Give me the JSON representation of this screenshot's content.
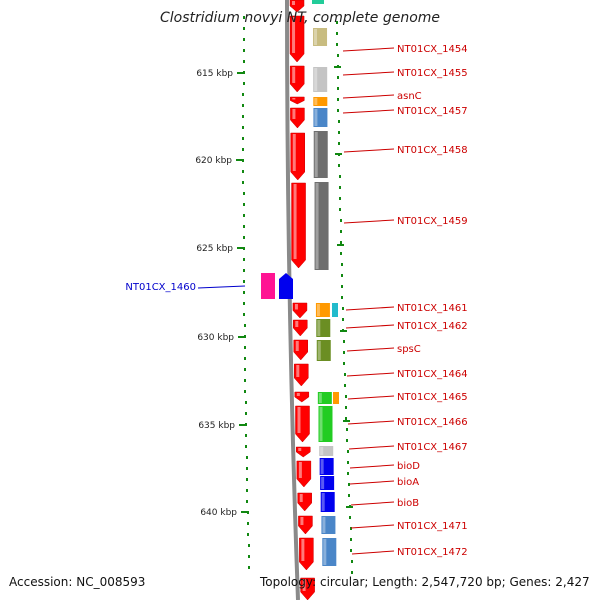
{
  "title": "Clostridium novyi NT, complete genome",
  "footer": {
    "accession": "Accession: NC_008593",
    "info": "Topology: circular; Length: 2,547,720 bp; Genes: 2,427"
  },
  "colors": {
    "backbone": "#8a8a8a",
    "gene_red": "#ff0000",
    "tick_green": "#118811",
    "label_red": "#cc0000",
    "label_blue": "#0000cc"
  },
  "ruler": [
    {
      "label": "615 kbp"
    },
    {
      "label": "620 kbp"
    },
    {
      "label": "625 kbp"
    },
    {
      "label": "630 kbp"
    },
    {
      "label": "635 kbp"
    },
    {
      "label": "640 kbp"
    }
  ],
  "genes_right": [
    {
      "label": "NT01CX_1454",
      "cog_color": "#c8bc80"
    },
    {
      "label": "NT01CX_1455",
      "cog_color": "#c4c4c4"
    },
    {
      "label": "asnC",
      "cog_color": "#ff9900"
    },
    {
      "label": "NT01CX_1457",
      "cog_color": "#4a86c8"
    },
    {
      "label": "NT01CX_1458",
      "cog_color": "#6e6e6e"
    },
    {
      "label": "NT01CX_1459",
      "cog_color": "#6e6e6e"
    },
    {
      "label": "NT01CX_1461",
      "cog_color": "#ff9900"
    },
    {
      "label": "NT01CX_1462",
      "cog_color": "#6b8e23"
    },
    {
      "label": "spsC",
      "cog_color": "#6b8e23"
    },
    {
      "label": "NT01CX_1464",
      "cog_color": ""
    },
    {
      "label": "NT01CX_1465",
      "cog_color": "#22cc22"
    },
    {
      "label": "NT01CX_1466",
      "cog_color": "#22cc22"
    },
    {
      "label": "NT01CX_1467",
      "cog_color": "#c4c4c4"
    },
    {
      "label": "bioD",
      "cog_color": "#0000ee"
    },
    {
      "label": "bioA",
      "cog_color": "#0000ee"
    },
    {
      "label": "bioB",
      "cog_color": "#0000ee"
    },
    {
      "label": "NT01CX_1471",
      "cog_color": "#4a86c8"
    },
    {
      "label": "NT01CX_1472",
      "cog_color": "#4a86c8"
    }
  ],
  "genes_left": [
    {
      "label": "NT01CX_1460",
      "cog_colors": [
        "#ff1493",
        "#0000ee"
      ]
    }
  ]
}
